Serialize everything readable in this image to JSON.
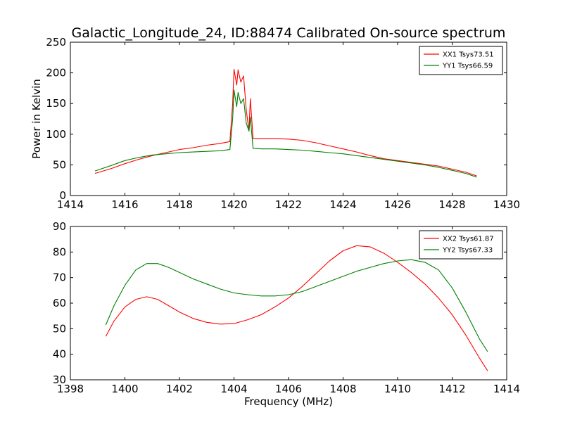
{
  "chart_data": [
    {
      "type": "line",
      "title": "Galactic_Longitude_24, ID:88474 Calibrated On-source spectrum",
      "xlabel": "",
      "ylabel": "Power in Kelvin",
      "xlim": [
        1414,
        1430
      ],
      "ylim": [
        0,
        250
      ],
      "xticks": [
        "1414",
        "1416",
        "1418",
        "1420",
        "1422",
        "1424",
        "1426",
        "1428",
        "1430"
      ],
      "yticks": [
        "0",
        "50",
        "100",
        "150",
        "200",
        "250"
      ],
      "grid": false,
      "legend_position": "top-right",
      "series": [
        {
          "name": "XX1 Tsys73.51",
          "color": "#ff0000",
          "x": [
            1414.9,
            1415.5,
            1416.0,
            1416.5,
            1417.0,
            1417.5,
            1418.0,
            1418.5,
            1419.0,
            1419.5,
            1419.85,
            1419.95,
            1420.0,
            1420.1,
            1420.15,
            1420.25,
            1420.35,
            1420.45,
            1420.55,
            1420.6,
            1420.7,
            1420.8,
            1421.0,
            1421.5,
            1422.0,
            1422.5,
            1423.0,
            1423.5,
            1424.0,
            1424.5,
            1425.0,
            1425.5,
            1426.0,
            1426.5,
            1427.0,
            1427.5,
            1428.0,
            1428.5,
            1428.9
          ],
          "y": [
            36,
            44,
            52,
            59,
            65,
            70,
            75,
            78,
            82,
            85,
            88,
            150,
            206,
            180,
            205,
            185,
            195,
            140,
            105,
            158,
            93,
            93,
            93,
            93,
            92,
            90,
            86,
            81,
            76,
            71,
            65,
            60,
            57,
            54,
            51,
            48,
            43,
            38,
            32
          ]
        },
        {
          "name": "YY1 Tsys66.59",
          "color": "#008000",
          "x": [
            1414.9,
            1415.5,
            1416.0,
            1416.5,
            1417.0,
            1417.5,
            1418.0,
            1418.5,
            1419.0,
            1419.5,
            1419.85,
            1419.95,
            1420.0,
            1420.1,
            1420.15,
            1420.25,
            1420.35,
            1420.45,
            1420.55,
            1420.6,
            1420.7,
            1420.8,
            1421.0,
            1421.5,
            1422.0,
            1422.5,
            1423.0,
            1423.5,
            1424.0,
            1424.5,
            1425.0,
            1425.5,
            1426.0,
            1426.5,
            1427.0,
            1427.5,
            1428.0,
            1428.5,
            1428.9
          ],
          "y": [
            40,
            49,
            57,
            62,
            66,
            68,
            70,
            71,
            72,
            73,
            75,
            125,
            172,
            145,
            168,
            150,
            158,
            118,
            105,
            128,
            77,
            77,
            76,
            76,
            75,
            74,
            72,
            70,
            68,
            65,
            62,
            59,
            56,
            53,
            50,
            46,
            41,
            36,
            30
          ]
        }
      ]
    },
    {
      "type": "line",
      "title": "",
      "xlabel": "Frequency (MHz)",
      "ylabel": "",
      "xlim": [
        1398,
        1414
      ],
      "ylim": [
        30,
        90
      ],
      "xticks": [
        "1398",
        "1400",
        "1402",
        "1404",
        "1406",
        "1408",
        "1410",
        "1412",
        "1414"
      ],
      "yticks": [
        "30",
        "40",
        "50",
        "60",
        "70",
        "80",
        "90"
      ],
      "grid": false,
      "legend_position": "top-right",
      "series": [
        {
          "name": "XX2 Tsys61.87",
          "color": "#ff0000",
          "x": [
            1399.3,
            1399.6,
            1400.0,
            1400.4,
            1400.8,
            1401.2,
            1401.6,
            1402.0,
            1402.5,
            1403.0,
            1403.5,
            1404.0,
            1404.5,
            1405.0,
            1405.5,
            1406.0,
            1406.5,
            1407.0,
            1407.5,
            1408.0,
            1408.5,
            1409.0,
            1409.5,
            1410.0,
            1410.5,
            1411.0,
            1411.5,
            1412.0,
            1412.5,
            1413.0,
            1413.3
          ],
          "y": [
            47,
            53,
            58.5,
            61.5,
            62.5,
            61.5,
            59,
            56.5,
            54,
            52.5,
            51.8,
            52,
            53.5,
            55.5,
            58.5,
            62,
            66.5,
            71.5,
            76.5,
            80.5,
            82.5,
            82,
            79.5,
            76,
            72,
            67.5,
            62,
            55.5,
            47.5,
            38.5,
            33.5
          ]
        },
        {
          "name": "YY2 Tsys67.33",
          "color": "#008000",
          "x": [
            1399.3,
            1399.6,
            1400.0,
            1400.4,
            1400.8,
            1401.2,
            1401.6,
            1402.0,
            1402.5,
            1403.0,
            1403.5,
            1404.0,
            1404.5,
            1405.0,
            1405.5,
            1406.0,
            1406.5,
            1407.0,
            1407.5,
            1408.0,
            1408.5,
            1409.0,
            1409.5,
            1410.0,
            1410.5,
            1411.0,
            1411.5,
            1412.0,
            1412.5,
            1413.0,
            1413.3
          ],
          "y": [
            51.5,
            59,
            67,
            73,
            75.5,
            75.5,
            74,
            72,
            69.5,
            67.5,
            65.5,
            64,
            63.3,
            62.8,
            62.8,
            63.3,
            64.5,
            66.5,
            68.5,
            70.5,
            72.5,
            74,
            75.5,
            76.5,
            77,
            76,
            73,
            66,
            56.5,
            46,
            41
          ]
        }
      ]
    }
  ]
}
